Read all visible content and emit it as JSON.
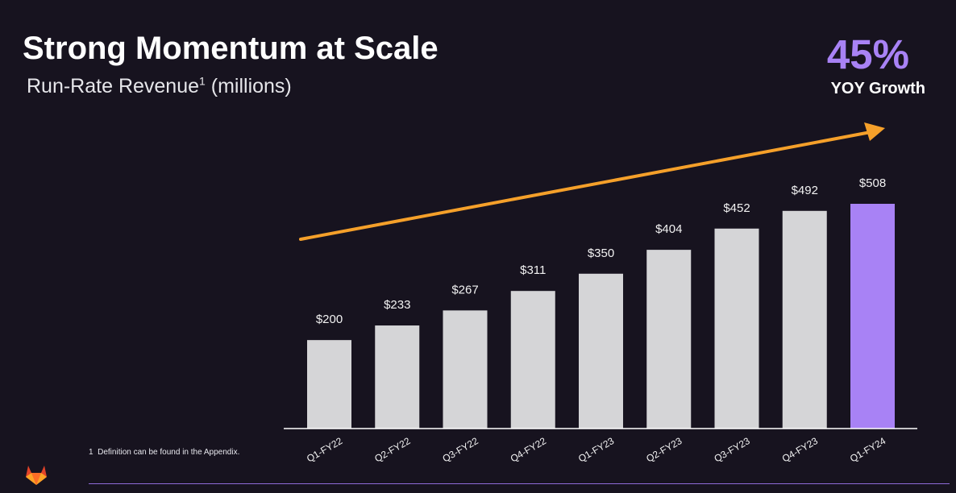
{
  "header": {
    "title": "Strong Momentum at Scale",
    "subtitle": "Run-Rate Revenue",
    "subtitle_sup": "1",
    "subtitle_suffix": " (millions)"
  },
  "kpi": {
    "value": "45%",
    "label": "YOY Growth"
  },
  "footnote": {
    "marker": "1",
    "text": "Definition can be found in the Appendix."
  },
  "colors": {
    "background": "#17131f",
    "bar": "#d5d5d7",
    "highlight": "#a882f5",
    "arrow": "#f5a02a",
    "axis": "#ffffff"
  },
  "chart_data": {
    "type": "bar",
    "title": "Run-Rate Revenue (millions)",
    "xlabel": "",
    "ylabel": "",
    "ylim": [
      0,
      600
    ],
    "categories": [
      "Q1-FY22",
      "Q2-FY22",
      "Q3-FY22",
      "Q4-FY22",
      "Q1-FY23",
      "Q2-FY23",
      "Q3-FY23",
      "Q4-FY23",
      "Q1-FY24"
    ],
    "values": [
      200,
      233,
      267,
      311,
      350,
      404,
      452,
      492,
      508
    ],
    "value_labels": [
      "$200",
      "$233",
      "$267",
      "$311",
      "$350",
      "$404",
      "$452",
      "$492",
      "$508"
    ],
    "highlight_index": 8,
    "annotation": "growth trend arrow"
  }
}
